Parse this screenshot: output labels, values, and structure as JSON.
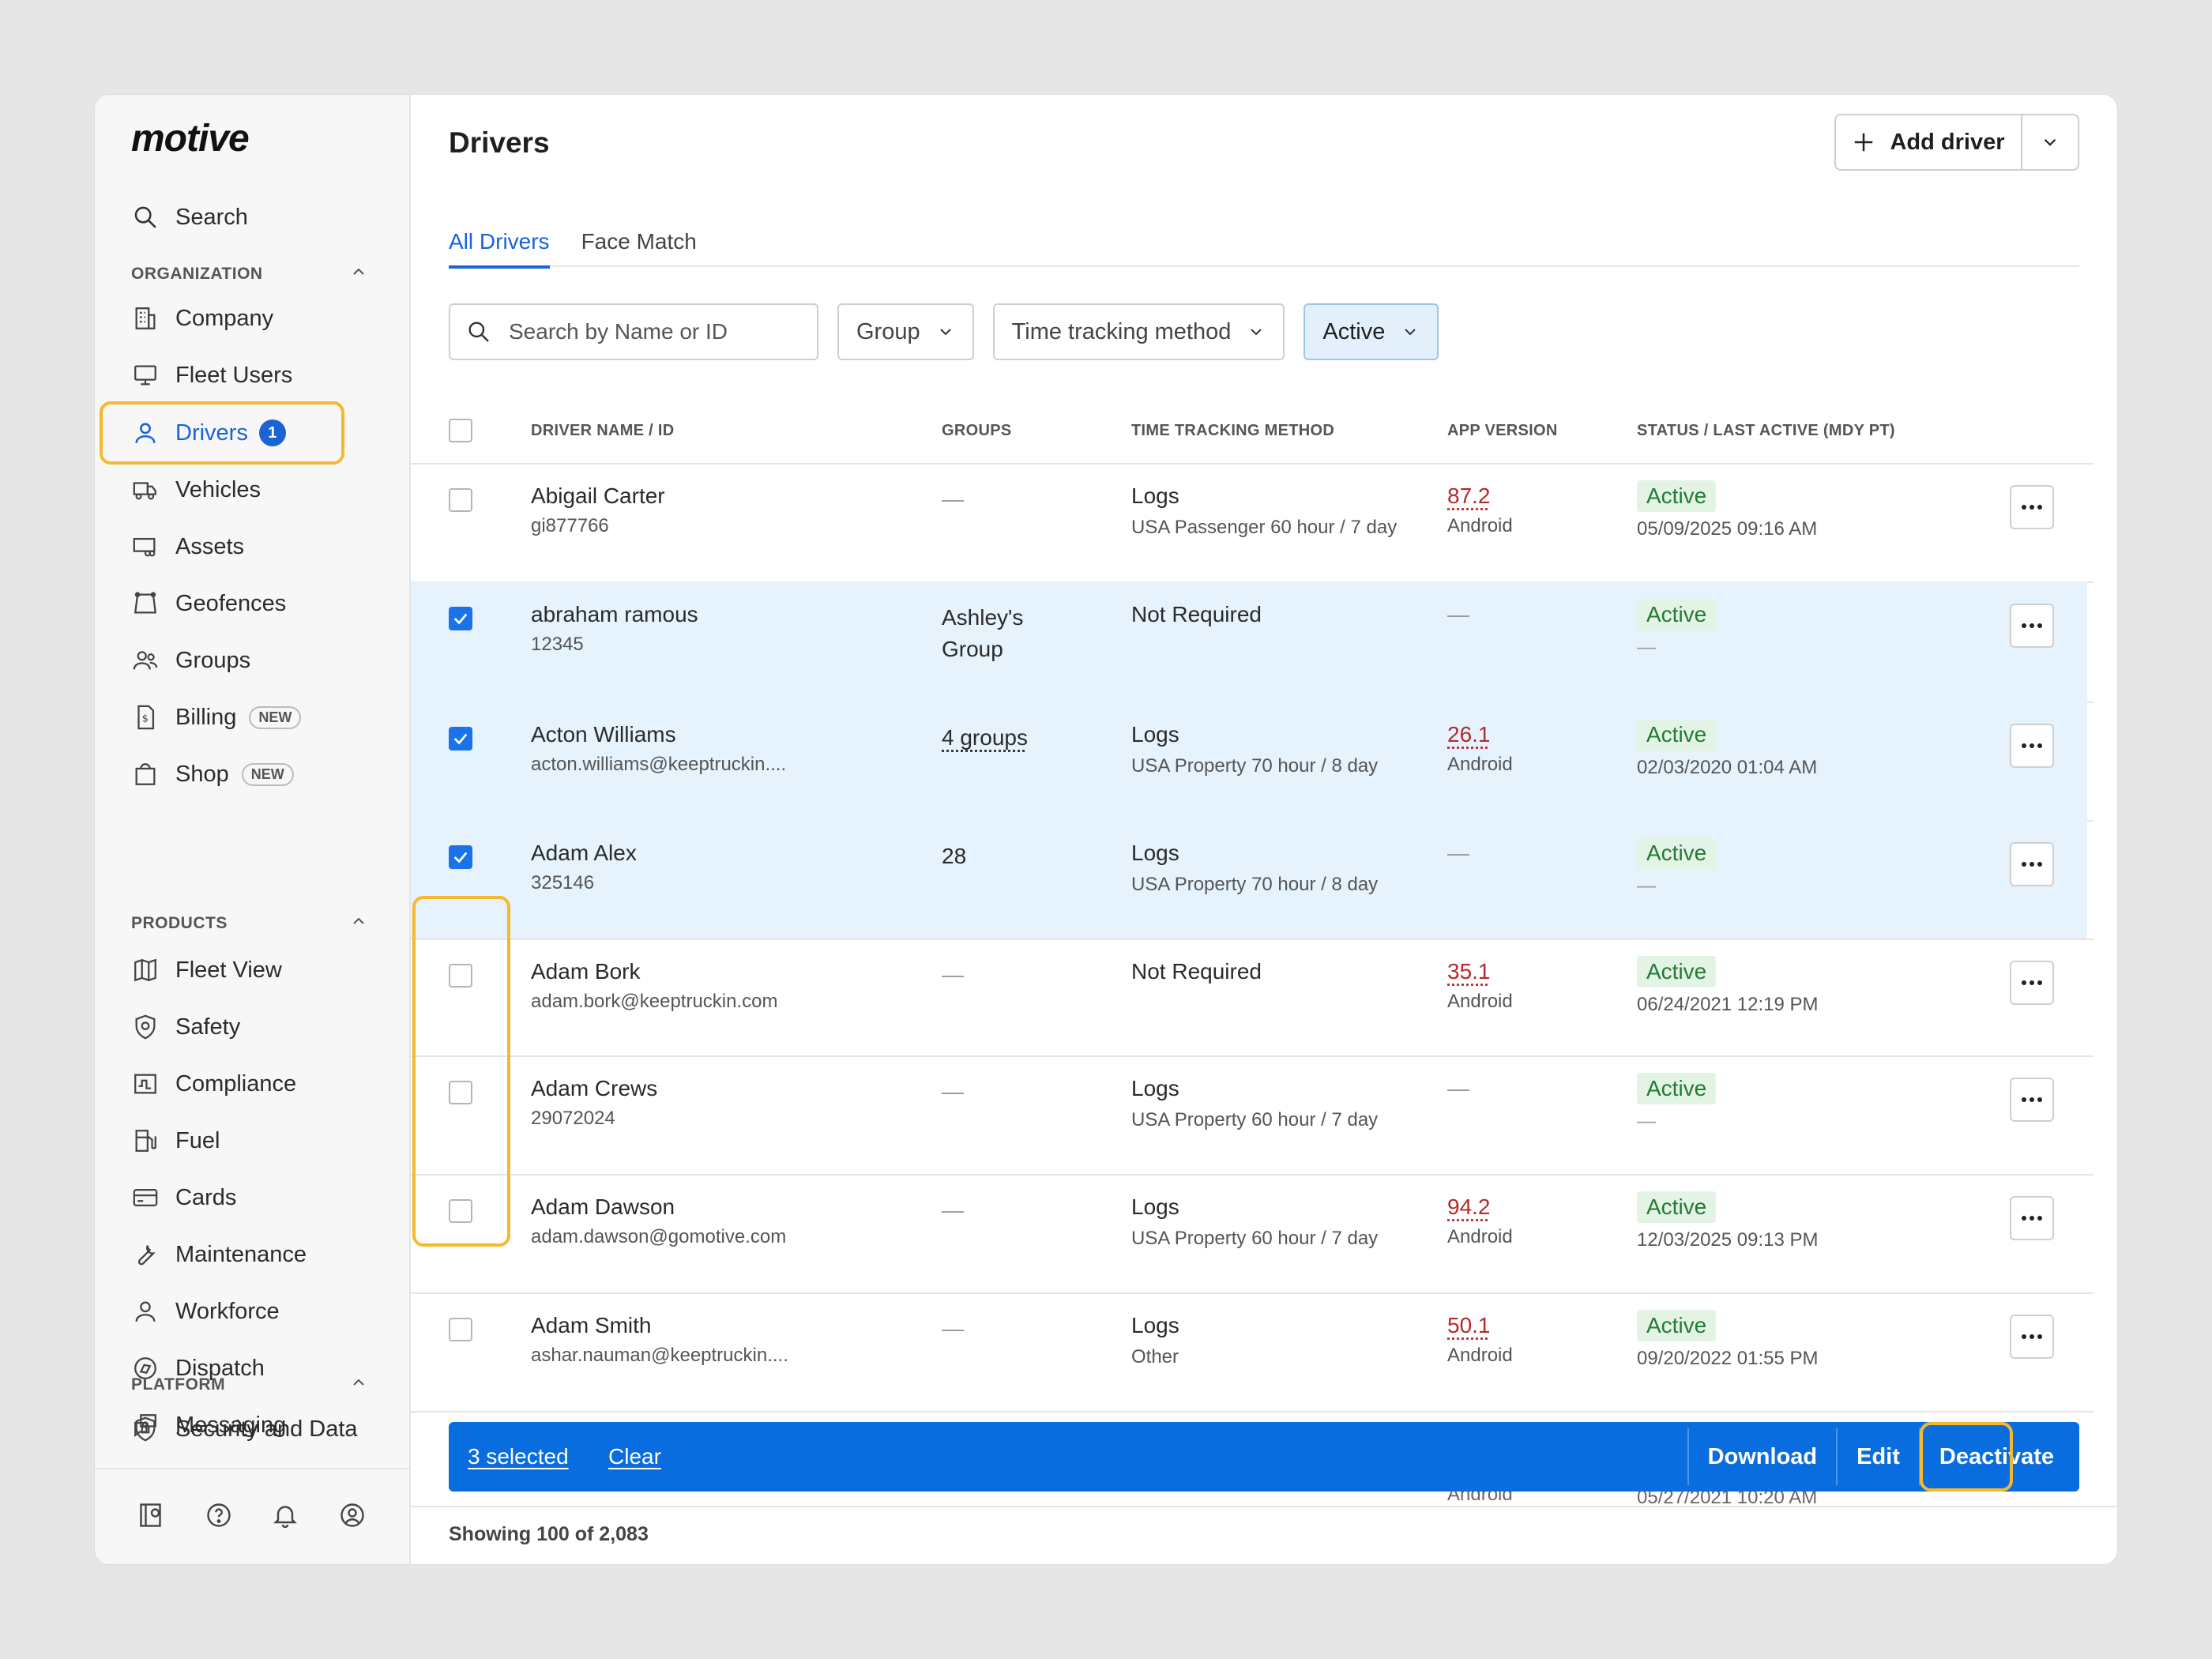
{
  "brand": "motive",
  "sidebar": {
    "search": "Search",
    "sections": {
      "organization": "ORGANIZATION",
      "products": "PRODUCTS",
      "platform": "PLATFORM"
    },
    "org_items": [
      "Company",
      "Fleet Users",
      "Drivers",
      "Vehicles",
      "Assets",
      "Geofences",
      "Groups",
      "Billing",
      "Shop"
    ],
    "drivers_count": "1",
    "new_badge": "NEW",
    "product_items": [
      "Fleet View",
      "Safety",
      "Compliance",
      "Fuel",
      "Cards",
      "Maintenance",
      "Workforce",
      "Dispatch",
      "Messaging"
    ],
    "platform_items": [
      "Security and Data"
    ]
  },
  "header": {
    "title": "Drivers",
    "add_driver": "Add driver"
  },
  "tabs": [
    "All Drivers",
    "Face Match"
  ],
  "filters": {
    "search_placeholder": "Search by Name or ID",
    "group": "Group",
    "time_tracking": "Time tracking method",
    "status": "Active"
  },
  "table": {
    "columns": [
      "DRIVER NAME / ID",
      "GROUPS",
      "TIME TRACKING METHOD",
      "APP VERSION",
      "STATUS / LAST ACTIVE (MDY PT)"
    ],
    "rows": [
      {
        "name": "Abigail Carter",
        "id": "gi877766",
        "groups": "—",
        "method": "Logs",
        "method_sub": "USA Passenger 60 hour / 7 day",
        "version": "87.2",
        "platform": "Android",
        "status": "Active",
        "last": "05/09/2025 09:16 AM",
        "selected": false
      },
      {
        "name": "abraham ramous",
        "id": "12345",
        "groups": "Ashley's Group",
        "method": "Not Required",
        "method_sub": "",
        "version": "—",
        "platform": "",
        "status": "Active",
        "last": "—",
        "selected": true
      },
      {
        "name": "Acton Williams",
        "id": "acton.williams@keeptruckin....",
        "groups": "4 groups",
        "method": "Logs",
        "method_sub": "USA Property 70 hour / 8 day",
        "version": "26.1",
        "platform": "Android",
        "status": "Active",
        "last": "02/03/2020 01:04 AM",
        "selected": true
      },
      {
        "name": "Adam Alex",
        "id": "325146",
        "groups": "28",
        "method": "Logs",
        "method_sub": "USA Property 70 hour / 8 day",
        "version": "—",
        "platform": "",
        "status": "Active",
        "last": "—",
        "selected": true
      },
      {
        "name": "Adam Bork",
        "id": "adam.bork@keeptruckin.com",
        "groups": "—",
        "method": "Not Required",
        "method_sub": "",
        "version": "35.1",
        "platform": "Android",
        "status": "Active",
        "last": "06/24/2021 12:19 PM",
        "selected": false
      },
      {
        "name": "Adam Crews",
        "id": "29072024",
        "groups": "—",
        "method": "Logs",
        "method_sub": "USA Property 60 hour / 7 day",
        "version": "—",
        "platform": "",
        "status": "Active",
        "last": "—",
        "selected": false
      },
      {
        "name": "Adam Dawson",
        "id": "adam.dawson@gomotive.com",
        "groups": "—",
        "method": "Logs",
        "method_sub": "USA Property 60 hour / 7 day",
        "version": "94.2",
        "platform": "Android",
        "status": "Active",
        "last": "12/03/2025 09:13 PM",
        "selected": false
      },
      {
        "name": "Adam Smith",
        "id": "ashar.nauman@keeptruckin....",
        "groups": "—",
        "method": "Logs",
        "method_sub": "Other",
        "version": "50.1",
        "platform": "Android",
        "status": "Active",
        "last": "09/20/2022 01:55 PM",
        "selected": false
      }
    ],
    "peek_platform": "Android",
    "peek_last": "05/27/2021 10:20 AM"
  },
  "bulk": {
    "selected": "3 selected",
    "clear": "Clear",
    "download": "Download",
    "edit": "Edit",
    "deactivate": "Deactivate"
  },
  "footer": "Showing 100 of 2,083",
  "colors": {
    "accent": "#1a63d6",
    "bulk_bar": "#0a6ddf",
    "highlight": "#f5b82e",
    "status_bg": "#e3f4e5"
  }
}
